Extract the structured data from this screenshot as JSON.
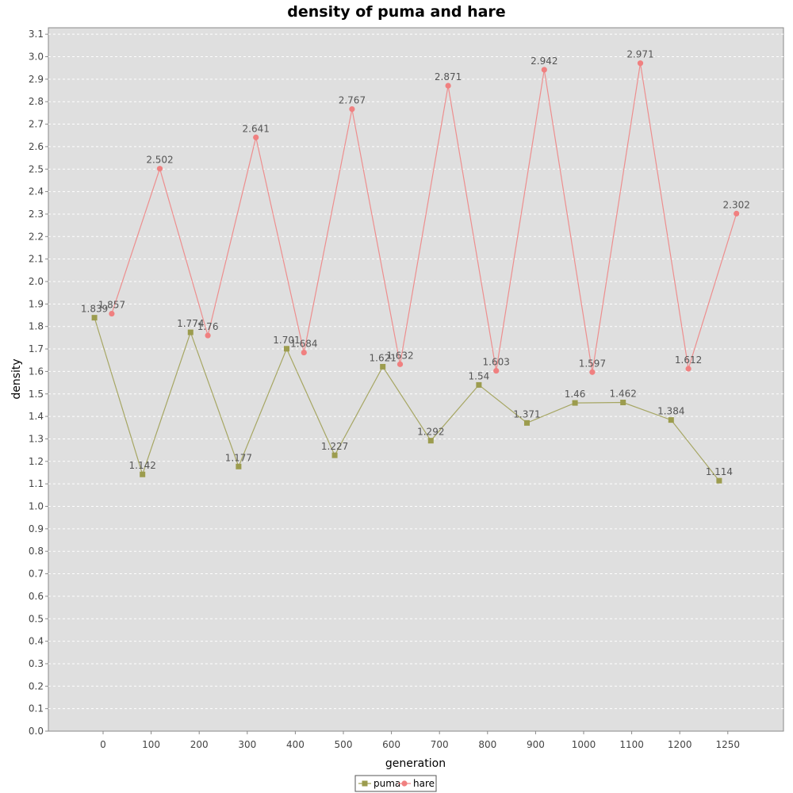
{
  "chart_data": {
    "type": "line",
    "title": "density of puma and hare",
    "xlabel": "generation",
    "ylabel": "density",
    "ylim": [
      0.0,
      3.1
    ],
    "yticks": [
      "0.0",
      "0.1",
      "0.2",
      "0.3",
      "0.4",
      "0.5",
      "0.6",
      "0.7",
      "0.8",
      "0.9",
      "1.0",
      "1.1",
      "1.2",
      "1.3",
      "1.4",
      "1.5",
      "1.6",
      "1.7",
      "1.8",
      "1.9",
      "2.0",
      "2.1",
      "2.2",
      "2.3",
      "2.4",
      "2.5",
      "2.6",
      "2.7",
      "2.8",
      "2.9",
      "3.0",
      "3.1"
    ],
    "categories": [
      "0",
      "100",
      "200",
      "300",
      "400",
      "500",
      "600",
      "700",
      "800",
      "900",
      "1000",
      "1100",
      "1200",
      "1250"
    ],
    "grid": true,
    "legend": "bottom-center",
    "series": [
      {
        "name": "puma",
        "color": "#9c9c4e",
        "marker": "square",
        "offset": -0.18,
        "values": [
          1.839,
          1.142,
          1.774,
          1.177,
          1.701,
          1.227,
          1.621,
          1.292,
          1.54,
          1.371,
          1.46,
          1.462,
          1.384,
          1.114
        ],
        "labels": [
          "1.839",
          "1.142",
          "1.774",
          "1.177",
          "1.701",
          "1.227",
          "1.621",
          "1.292",
          "1.54",
          "1.371",
          "1.46",
          "1.462",
          "1.384",
          "1.114"
        ]
      },
      {
        "name": "hare",
        "color": "#f08080",
        "marker": "circle",
        "offset": 0.18,
        "values": [
          1.857,
          2.502,
          1.76,
          2.641,
          1.684,
          2.767,
          1.632,
          2.871,
          1.603,
          2.942,
          1.597,
          2.971,
          1.612,
          2.302
        ],
        "labels": [
          "1.857",
          "2.502",
          "1.76",
          "2.641",
          "1.684",
          "2.767",
          "1.632",
          "2.871",
          "1.603",
          "2.942",
          "1.597",
          "2.971",
          "1.612",
          "2.302"
        ]
      }
    ]
  }
}
